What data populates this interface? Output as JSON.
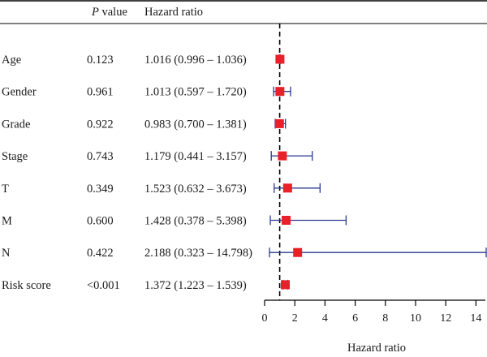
{
  "header": {
    "pvalue_label_italic": "P",
    "pvalue_label_rest": " value",
    "hazard_label": "Hazard ratio"
  },
  "chart_data": {
    "type": "forest",
    "xlabel": "Hazard ratio",
    "xlim": [
      0,
      15
    ],
    "xticks": [
      0,
      2,
      4,
      6,
      8,
      10,
      12,
      14
    ],
    "reference_line": 1,
    "colors": {
      "marker": "#e8202a",
      "ci": "#2b3a8f",
      "reference": "#000000"
    },
    "rows": [
      {
        "label": "Age",
        "p": "0.123",
        "hr_text": "1.016 (0.996 – 1.036)",
        "hr": 1.016,
        "lo": 0.996,
        "hi": 1.036
      },
      {
        "label": "Gender",
        "p": "0.961",
        "hr_text": "1.013 (0.597 – 1.720)",
        "hr": 1.013,
        "lo": 0.597,
        "hi": 1.72
      },
      {
        "label": "Grade",
        "p": "0.922",
        "hr_text": "0.983 (0.700 – 1.381)",
        "hr": 0.983,
        "lo": 0.7,
        "hi": 1.381
      },
      {
        "label": "Stage",
        "p": "0.743",
        "hr_text": "1.179 (0.441 – 3.157)",
        "hr": 1.179,
        "lo": 0.441,
        "hi": 3.157
      },
      {
        "label": "T",
        "p": "0.349",
        "hr_text": "1.523 (0.632 – 3.673)",
        "hr": 1.523,
        "lo": 0.632,
        "hi": 3.673
      },
      {
        "label": "M",
        "p": "0.600",
        "hr_text": "1.428 (0.378 – 5.398)",
        "hr": 1.428,
        "lo": 0.378,
        "hi": 5.398
      },
      {
        "label": "N",
        "p": "0.422",
        "hr_text": "2.188 (0.323 – 14.798)",
        "hr": 2.188,
        "lo": 0.323,
        "hi": 14.798
      },
      {
        "label": "Risk score",
        "p": "<0.001",
        "hr_text": "1.372 (1.223 – 1.539)",
        "hr": 1.372,
        "lo": 1.223,
        "hi": 1.539
      }
    ]
  }
}
